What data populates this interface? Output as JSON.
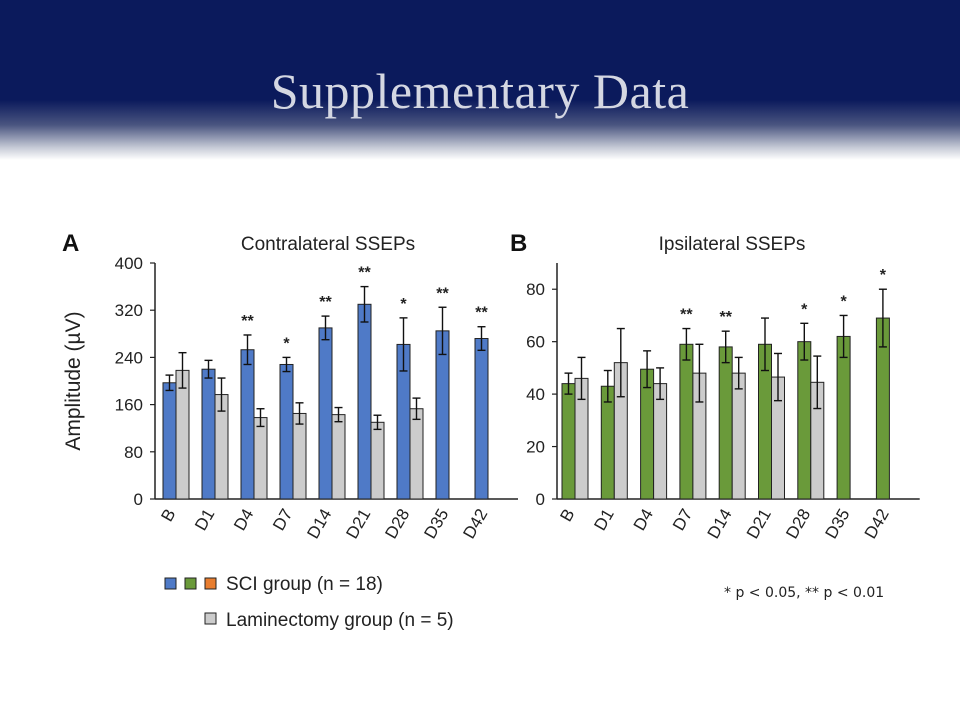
{
  "slide": {
    "title": "Supplementary Data",
    "footnote": "* p < 0.05, ** p < 0.01"
  },
  "colors": {
    "header_bg": "#0b1a5c",
    "sci_blue": "#4f7ac7",
    "sci_green": "#6a9a3a",
    "sci_orange": "#e87d2f",
    "laminectomy_gray": "#cccccc"
  },
  "legend": {
    "sci_label": "SCI group  (n = 18)",
    "lam_label": "Laminectomy group (n = 5)"
  },
  "chart_data": [
    {
      "type": "bar",
      "panel": "A",
      "title": "Contralateral SSEPs",
      "ylabel": "Amplitude (µV)",
      "xlabel": "",
      "ylim": [
        0,
        400
      ],
      "yticks": [
        0,
        80,
        160,
        240,
        320,
        400
      ],
      "categories": [
        "B",
        "D1",
        "D4",
        "D7",
        "D14",
        "D21",
        "D28",
        "D35",
        "D42"
      ],
      "series": [
        {
          "name": "SCI group  (n = 18)",
          "values": [
            197,
            220,
            253,
            228,
            290,
            330,
            262,
            285,
            272
          ],
          "errors": [
            13,
            15,
            25,
            12,
            20,
            30,
            45,
            40,
            20
          ]
        },
        {
          "name": "Laminectomy group (n = 5)",
          "values": [
            218,
            177,
            138,
            145,
            143,
            130,
            153,
            null,
            null
          ],
          "errors": [
            30,
            28,
            15,
            18,
            12,
            12,
            18,
            null,
            null
          ]
        }
      ],
      "significance": [
        "",
        "",
        "**",
        "*",
        "**",
        "**",
        "*",
        "**",
        "**"
      ],
      "grid": false
    },
    {
      "type": "bar",
      "panel": "B",
      "title": "Ipsilateral SSEPs",
      "ylabel": "",
      "xlabel": "",
      "ylim": [
        0,
        90
      ],
      "yticks": [
        0,
        20,
        40,
        60,
        80
      ],
      "categories": [
        "B",
        "D1",
        "D4",
        "D7",
        "D14",
        "D21",
        "D28",
        "D35",
        "D42"
      ],
      "series": [
        {
          "name": "SCI group  (n = 18)",
          "values": [
            44,
            43,
            49.5,
            59,
            58,
            59,
            60,
            62,
            69
          ],
          "errors": [
            4,
            6,
            7,
            6,
            6,
            10,
            7,
            8,
            11
          ]
        },
        {
          "name": "Laminectomy group (n = 5)",
          "values": [
            46,
            52,
            44,
            48,
            48,
            46.5,
            44.5,
            null,
            null
          ],
          "errors": [
            8,
            13,
            6,
            11,
            6,
            9,
            10,
            null,
            null
          ]
        }
      ],
      "significance": [
        "",
        "",
        "",
        "**",
        "**",
        "",
        "*",
        "*",
        "*"
      ],
      "grid": false
    }
  ]
}
